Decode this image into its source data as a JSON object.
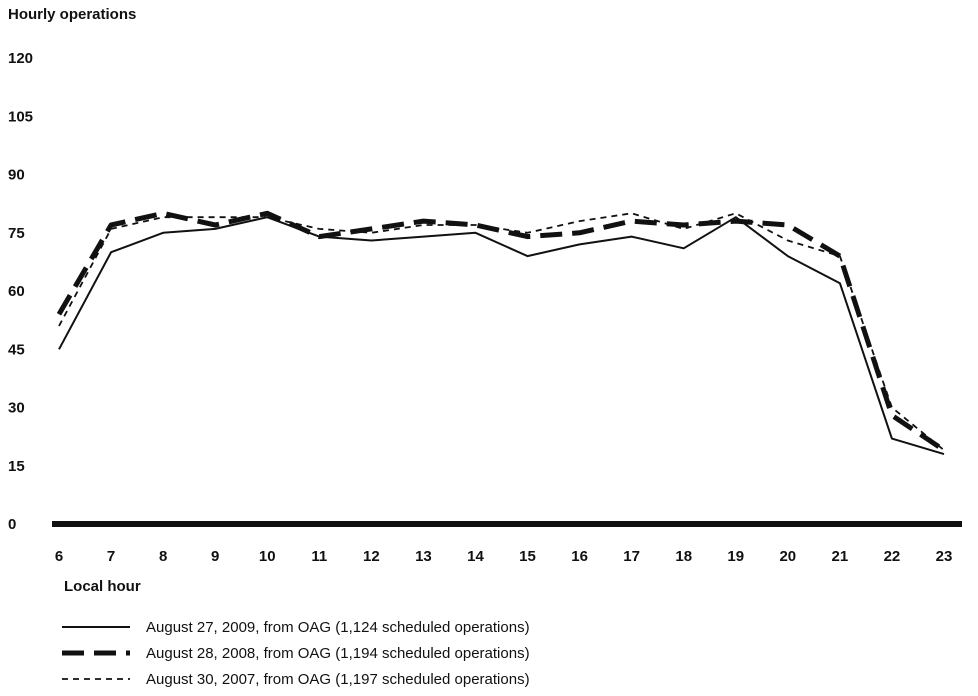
{
  "chart_data": {
    "type": "line",
    "ylabel": "Hourly operations",
    "xlabel": "Local hour",
    "x": [
      6,
      7,
      8,
      9,
      10,
      11,
      12,
      13,
      14,
      15,
      16,
      17,
      18,
      19,
      20,
      21,
      22,
      23
    ],
    "yticks": [
      0,
      15,
      30,
      45,
      60,
      75,
      90,
      105,
      120
    ],
    "ylim": [
      0,
      120
    ],
    "xlim": [
      6,
      23
    ],
    "grid": false,
    "legend_position": "bottom",
    "series": [
      {
        "name": "August 27, 2009, from OAG (1,124 scheduled operations)",
        "style": "solid",
        "values": [
          45,
          70,
          75,
          76,
          79,
          74,
          73,
          74,
          75,
          69,
          72,
          74,
          71,
          79,
          69,
          62,
          22,
          18
        ]
      },
      {
        "name": "August 28, 2008, from OAG (1,194 scheduled operations)",
        "style": "long-dash",
        "values": [
          54,
          77,
          80,
          77,
          80,
          74,
          76,
          78,
          77,
          74,
          75,
          78,
          77,
          78,
          77,
          69,
          28,
          19
        ]
      },
      {
        "name": "August 30, 2007, from OAG (1,197 scheduled operations)",
        "style": "short-dash",
        "values": [
          51,
          76,
          79,
          79,
          79,
          76,
          75,
          77,
          77,
          75,
          78,
          80,
          76,
          80,
          73,
          69,
          30,
          19
        ]
      }
    ]
  }
}
